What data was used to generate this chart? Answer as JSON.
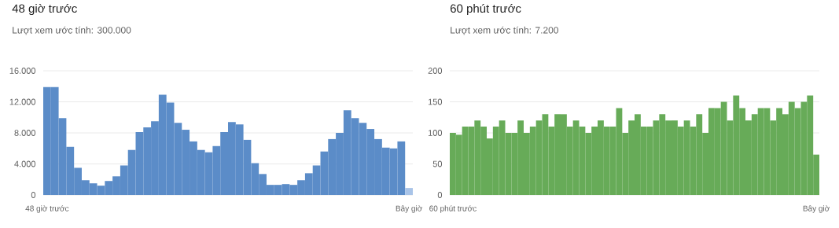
{
  "chart_data": [
    {
      "type": "bar",
      "title": "48 giờ trước",
      "subtitle": "Lượt xem ước tính: 300.000",
      "categories": [
        "48 giờ trước",
        null,
        null,
        null,
        null,
        null,
        null,
        null,
        null,
        null,
        null,
        null,
        null,
        null,
        null,
        null,
        null,
        null,
        null,
        null,
        null,
        null,
        null,
        null,
        null,
        null,
        null,
        null,
        null,
        null,
        null,
        null,
        null,
        null,
        null,
        null,
        null,
        null,
        null,
        null,
        null,
        null,
        null,
        null,
        null,
        null,
        null,
        "Bây giờ"
      ],
      "values": [
        13900,
        13900,
        9900,
        6200,
        3500,
        1900,
        1500,
        1200,
        1800,
        2400,
        3800,
        5800,
        8100,
        8700,
        9500,
        12900,
        11900,
        9300,
        8400,
        6900,
        5800,
        5500,
        6300,
        8100,
        9400,
        9100,
        7100,
        4100,
        2700,
        1300,
        1300,
        1400,
        1300,
        1900,
        2800,
        3800,
        5600,
        7200,
        8000,
        10900,
        9900,
        9300,
        8500,
        7200,
        6100,
        6000,
        6900,
        900
      ],
      "colors": [
        "#5b8cc8",
        "#5b8cc8",
        "#5b8cc8",
        "#5b8cc8",
        "#5b8cc8",
        "#5b8cc8",
        "#5b8cc8",
        "#5b8cc8",
        "#5b8cc8",
        "#5b8cc8",
        "#5b8cc8",
        "#5b8cc8",
        "#5b8cc8",
        "#5b8cc8",
        "#5b8cc8",
        "#5b8cc8",
        "#5b8cc8",
        "#5b8cc8",
        "#5b8cc8",
        "#5b8cc8",
        "#5b8cc8",
        "#5b8cc8",
        "#5b8cc8",
        "#5b8cc8",
        "#5b8cc8",
        "#5b8cc8",
        "#5b8cc8",
        "#5b8cc8",
        "#5b8cc8",
        "#5b8cc8",
        "#5b8cc8",
        "#5b8cc8",
        "#5b8cc8",
        "#5b8cc8",
        "#5b8cc8",
        "#5b8cc8",
        "#5b8cc8",
        "#5b8cc8",
        "#5b8cc8",
        "#5b8cc8",
        "#5b8cc8",
        "#5b8cc8",
        "#5b8cc8",
        "#5b8cc8",
        "#5b8cc8",
        "#5b8cc8",
        "#5b8cc8",
        "#a9c4e8"
      ],
      "ylim": [
        0,
        16000
      ],
      "yticks": [
        0,
        {
          "value": 4000,
          "label": "4.000"
        },
        {
          "value": 8000,
          "label": "8.000"
        },
        {
          "value": 12000,
          "label": "12.000"
        },
        {
          "value": 16000,
          "label": "16.000"
        }
      ],
      "grid": "y"
    },
    {
      "type": "bar",
      "title": "60 phút trước",
      "subtitle": "Lượt xem ước tính: 7.200",
      "categories": [
        "60 phút trước",
        null,
        null,
        null,
        null,
        null,
        null,
        null,
        null,
        null,
        null,
        null,
        null,
        null,
        null,
        null,
        null,
        null,
        null,
        null,
        null,
        null,
        null,
        null,
        null,
        null,
        null,
        null,
        null,
        null,
        null,
        null,
        null,
        null,
        null,
        null,
        null,
        null,
        null,
        null,
        null,
        null,
        null,
        null,
        null,
        null,
        null,
        null,
        null,
        null,
        null,
        null,
        null,
        null,
        null,
        null,
        null,
        null,
        null,
        "Bây giờ"
      ],
      "values": [
        100,
        97,
        110,
        110,
        120,
        110,
        91,
        110,
        120,
        100,
        100,
        120,
        100,
        110,
        120,
        130,
        110,
        130,
        130,
        110,
        120,
        110,
        100,
        110,
        120,
        110,
        110,
        140,
        100,
        120,
        130,
        110,
        110,
        120,
        130,
        120,
        120,
        110,
        120,
        110,
        130,
        100,
        140,
        140,
        150,
        120,
        160,
        140,
        120,
        130,
        140,
        140,
        120,
        140,
        130,
        150,
        140,
        150,
        160,
        65
      ],
      "color": "#67ab58",
      "ylim": [
        0,
        200
      ],
      "yticks": [
        0,
        50,
        100,
        150,
        200
      ],
      "grid": "y"
    }
  ]
}
